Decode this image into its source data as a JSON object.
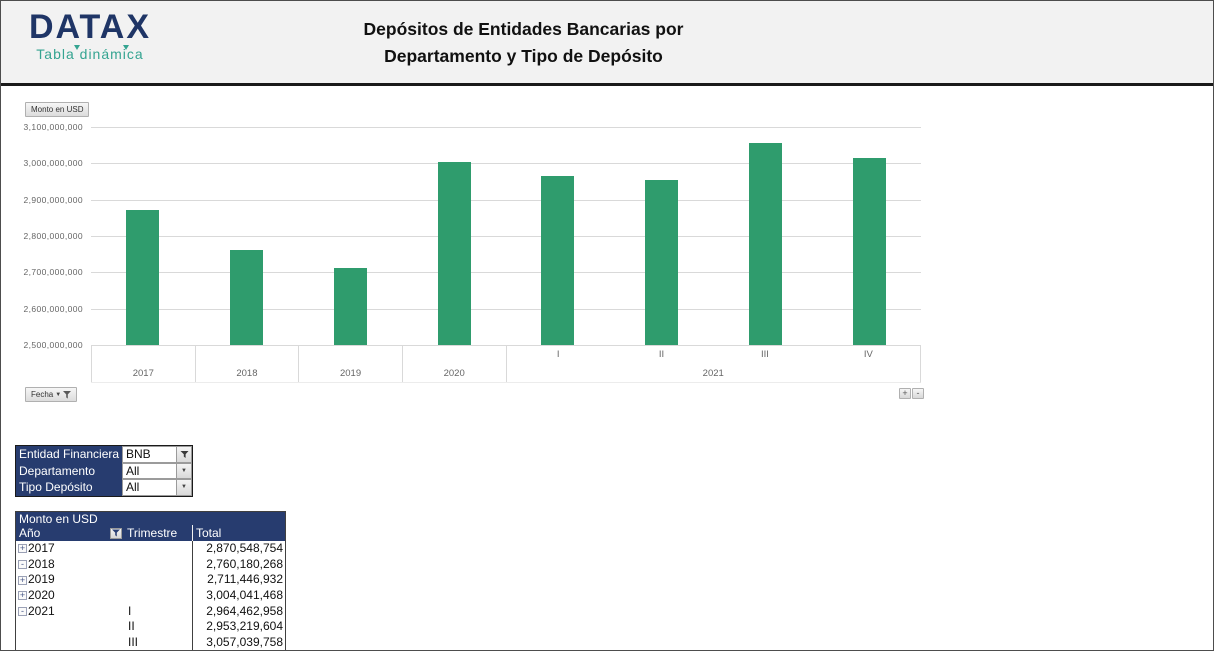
{
  "header": {
    "logo_text": "DATAX",
    "logo_subtitle": "Tabla dinámica",
    "title_line1": "Depósitos de Entidades Bancarias por",
    "title_line2": "Departamento y Tipo de Depósito"
  },
  "chart": {
    "value_field_button": "Monto en USD",
    "axis_field_button": "Fecha",
    "expand_all_button": "+",
    "collapse_all_button": "-",
    "colors": {
      "bar": "#2f9c6d",
      "gridline": "#d9d9d9",
      "axis_text": "#666666"
    }
  },
  "chart_data": {
    "type": "bar",
    "title": "Depósitos de Entidades Bancarias por Departamento y Tipo de Depósito",
    "ylabel": "Monto en USD",
    "xlabel": "Fecha",
    "ylim": [
      2500000000,
      3100000000
    ],
    "ytick_step": 100000000,
    "grid": true,
    "legend": false,
    "groups": [
      {
        "label": "2017",
        "items": [
          {
            "label": "",
            "value": 2870548754
          }
        ]
      },
      {
        "label": "2018",
        "items": [
          {
            "label": "",
            "value": 2760180268
          }
        ]
      },
      {
        "label": "2019",
        "items": [
          {
            "label": "",
            "value": 2711446932
          }
        ]
      },
      {
        "label": "2020",
        "items": [
          {
            "label": "",
            "value": 3004041468
          }
        ]
      },
      {
        "label": "2021",
        "items": [
          {
            "label": "I",
            "value": 2964462958
          },
          {
            "label": "II",
            "value": 2953219604
          },
          {
            "label": "III",
            "value": 3057039758
          },
          {
            "label": "IV",
            "value": 3014000000
          }
        ]
      }
    ]
  },
  "filters": {
    "rows": [
      {
        "label": "Entidad Financiera",
        "value": "BNB"
      },
      {
        "label": "Departamento",
        "value": "All"
      },
      {
        "label": "Tipo Depósito",
        "value": "All"
      }
    ]
  },
  "pivot_table": {
    "corner_label": "Monto en USD",
    "headers": {
      "year": "Año",
      "quarter": "Trimestre",
      "total": "Total"
    },
    "rows": [
      {
        "expand": "+",
        "year": "2017",
        "quarter": "",
        "total": "2,870,548,754"
      },
      {
        "expand": "-",
        "year": "2018",
        "quarter": "",
        "total": "2,760,180,268"
      },
      {
        "expand": "+",
        "year": "2019",
        "quarter": "",
        "total": "2,711,446,932"
      },
      {
        "expand": "+",
        "year": "2020",
        "quarter": "",
        "total": "3,004,041,468"
      },
      {
        "expand": "-",
        "year": "2021",
        "quarter": "I",
        "total": "2,964,462,958"
      },
      {
        "expand": "",
        "year": "",
        "quarter": "II",
        "total": "2,953,219,604"
      },
      {
        "expand": "",
        "year": "",
        "quarter": "III",
        "total": "3,057,039,758"
      }
    ]
  }
}
